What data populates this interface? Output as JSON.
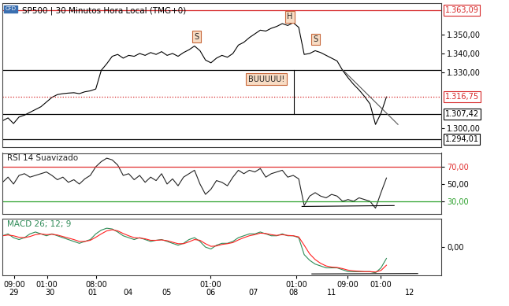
{
  "chart_data": [
    {
      "type": "line",
      "title": "SP500 | 30 Minutos Hora Local (TMG+0)",
      "badge": "CFD",
      "x": [
        0,
        1,
        2,
        3,
        4,
        5,
        6,
        7,
        8,
        9,
        10,
        11,
        12,
        13,
        14,
        15,
        16,
        17,
        18,
        19,
        20,
        21,
        22,
        23,
        24,
        25,
        26,
        27,
        28,
        29,
        30,
        31,
        32,
        33,
        34,
        35,
        36,
        37,
        38,
        39,
        40,
        41,
        42,
        43,
        44,
        45,
        46,
        47,
        48,
        49,
        50,
        51,
        52,
        53,
        54,
        55,
        56,
        57,
        58,
        59,
        60,
        61,
        62,
        63,
        64,
        65,
        66,
        67,
        68,
        69,
        70
      ],
      "series": [
        {
          "name": "SP500",
          "color": "#000000",
          "values": [
            1304.0,
            1305.5,
            1302.5,
            1306.0,
            1307.0,
            1308.5,
            1310.0,
            1311.5,
            1314.0,
            1316.5,
            1318.0,
            1318.5,
            1318.8,
            1319.0,
            1318.5,
            1319.5,
            1320.0,
            1321.0,
            1331.0,
            1334.5,
            1338.5,
            1339.5,
            1337.5,
            1339.0,
            1338.5,
            1340.0,
            1339.0,
            1340.5,
            1339.5,
            1341.0,
            1339.0,
            1340.0,
            1338.5,
            1340.5,
            1342.0,
            1344.0,
            1341.5,
            1336.5,
            1335.0,
            1337.5,
            1339.0,
            1338.0,
            1340.0,
            1344.5,
            1346.0,
            1348.5,
            1350.5,
            1352.5,
            1352.0,
            1353.5,
            1354.5,
            1356.0,
            1355.0,
            1356.5,
            1354.0,
            1339.5,
            1340.0,
            1341.5,
            1340.5,
            1339.0,
            1337.5,
            1336.0,
            1331.0,
            1327.0,
            1323.5,
            1320.5,
            1317.0,
            1313.0,
            1302.0,
            1308.0,
            1316.75
          ]
        }
      ],
      "xlim": [
        0,
        80
      ],
      "ylim": [
        1290,
        1367
      ],
      "yticks": [
        {
          "value": 1300,
          "label": "1.300,00"
        },
        {
          "value": 1330,
          "label": "1.330,00"
        },
        {
          "value": 1340,
          "label": "1.340,00"
        },
        {
          "value": 1350,
          "label": "1.350,00"
        }
      ],
      "levels": [
        {
          "value": 1363.09,
          "label": "1.363,09",
          "color": "#d62728",
          "line_style": "solid"
        },
        {
          "value": 1331.3,
          "color": "#000000",
          "line_style": "solid"
        },
        {
          "value": 1316.75,
          "label": "1.316,75",
          "color": "#d62728",
          "line_style": "dotted"
        },
        {
          "value": 1307.42,
          "label": "1.307,42",
          "color": "#000000",
          "line_style": "solid"
        },
        {
          "value": 1294.01,
          "label": "1.294,01",
          "color": "#000000",
          "line_style": "solid"
        }
      ],
      "lines": [
        {
          "x": [
            53.1,
            53.1
          ],
          "y": [
            1331.3,
            1307.42
          ],
          "color": "#000000"
        },
        {
          "x": [
            62.1,
            72.1
          ],
          "y": [
            1331.0,
            1302.0
          ],
          "color": "#555555"
        }
      ],
      "annotations": [
        {
          "text": "S",
          "x": 35.4,
          "y": 1349.0
        },
        {
          "text": "H",
          "x": 52.4,
          "y": 1359.7
        },
        {
          "text": "S",
          "x": 57.1,
          "y": 1347.6
        },
        {
          "text": "BUUUUU!",
          "x": 48.1,
          "y": 1326.3
        }
      ],
      "grid": false,
      "tick_labels": "y"
    },
    {
      "type": "line",
      "title": "RSI 14 Suavizado",
      "x": [
        0,
        1,
        2,
        3,
        4,
        5,
        6,
        7,
        8,
        9,
        10,
        11,
        12,
        13,
        14,
        15,
        16,
        17,
        18,
        19,
        20,
        21,
        22,
        23,
        24,
        25,
        26,
        27,
        28,
        29,
        30,
        31,
        32,
        33,
        34,
        35,
        36,
        37,
        38,
        39,
        40,
        41,
        42,
        43,
        44,
        45,
        46,
        47,
        48,
        49,
        50,
        51,
        52,
        53,
        54,
        55,
        56,
        57,
        58,
        59,
        60,
        61,
        62,
        63,
        64,
        65,
        66,
        67,
        68,
        69,
        70
      ],
      "series": [
        {
          "name": "RSI 14 Suavizado",
          "color": "#222222",
          "values": [
            52,
            58,
            50,
            60,
            62,
            58,
            60,
            62,
            64,
            60,
            55,
            58,
            52,
            55,
            50,
            56,
            60,
            70,
            76,
            80,
            78,
            72,
            60,
            62,
            55,
            60,
            52,
            58,
            54,
            62,
            50,
            56,
            48,
            58,
            62,
            66,
            50,
            38,
            44,
            54,
            52,
            48,
            58,
            66,
            62,
            66,
            64,
            68,
            58,
            62,
            64,
            66,
            58,
            60,
            56,
            25,
            36,
            40,
            36,
            34,
            38,
            36,
            30,
            32,
            30,
            34,
            32,
            30,
            22,
            40,
            57
          ]
        }
      ],
      "xlim": [
        0,
        80
      ],
      "ylim": [
        15,
        86
      ],
      "yticks": [
        {
          "value": 30,
          "label": "30,00"
        },
        {
          "value": 50,
          "label": "50,00"
        },
        {
          "value": 70,
          "label": "70,00"
        }
      ],
      "levels": [
        {
          "value": 70,
          "color": "#e03030",
          "line_style": "solid"
        },
        {
          "value": 30,
          "color": "#2ca02c",
          "line_style": "solid"
        }
      ],
      "lines": [
        {
          "x": [
            54.6,
            71.4
          ],
          "y": [
            24,
            25
          ],
          "color": "#000000"
        }
      ],
      "grid": false,
      "tick_labels": "y"
    },
    {
      "type": "line",
      "title": "MACD 26; 12; 9",
      "x": [
        0,
        1,
        2,
        3,
        4,
        5,
        6,
        7,
        8,
        9,
        10,
        11,
        12,
        13,
        14,
        15,
        16,
        17,
        18,
        19,
        20,
        21,
        22,
        23,
        24,
        25,
        26,
        27,
        28,
        29,
        30,
        31,
        32,
        33,
        34,
        35,
        36,
        37,
        38,
        39,
        40,
        41,
        42,
        43,
        44,
        45,
        46,
        47,
        48,
        49,
        50,
        51,
        52,
        53,
        54,
        55,
        56,
        57,
        58,
        59,
        60,
        61,
        62,
        63,
        64,
        65,
        66,
        67,
        68,
        69,
        70
      ],
      "series": [
        {
          "name": "MACD 26; 12; 9",
          "color": "#2e8b57",
          "values": [
            3.0,
            3.5,
            2.5,
            2.0,
            2.5,
            3.5,
            4.0,
            3.5,
            3.0,
            3.5,
            3.0,
            2.5,
            2.0,
            1.5,
            1.0,
            1.5,
            2.0,
            3.5,
            4.5,
            5.0,
            4.8,
            4.0,
            3.0,
            2.5,
            2.0,
            2.5,
            2.0,
            1.5,
            1.8,
            2.0,
            1.5,
            1.0,
            0.5,
            1.0,
            2.0,
            2.5,
            1.5,
            0.0,
            -0.5,
            0.5,
            1.0,
            1.0,
            1.5,
            2.5,
            3.0,
            3.5,
            3.5,
            4.0,
            3.5,
            3.0,
            3.0,
            3.5,
            3.0,
            3.0,
            2.5,
            -2.0,
            -3.5,
            -4.5,
            -5.0,
            -5.5,
            -5.5,
            -5.5,
            -6.0,
            -6.5,
            -6.5,
            -6.5,
            -6.5,
            -6.5,
            -6.8,
            -5.5,
            -3.0
          ]
        },
        {
          "color": "#ff2020",
          "values": [
            3.0,
            3.2,
            3.0,
            2.6,
            2.5,
            2.8,
            3.3,
            3.5,
            3.3,
            3.4,
            3.2,
            2.8,
            2.4,
            2.0,
            1.5,
            1.5,
            1.8,
            2.6,
            3.5,
            4.3,
            4.6,
            4.3,
            3.6,
            3.0,
            2.5,
            2.4,
            2.2,
            1.8,
            1.8,
            1.9,
            1.7,
            1.3,
            0.9,
            0.9,
            1.4,
            2.0,
            1.8,
            0.9,
            0.2,
            0.3,
            0.7,
            0.9,
            1.2,
            1.9,
            2.5,
            3.0,
            3.3,
            3.7,
            3.6,
            3.3,
            3.1,
            3.3,
            3.1,
            3.0,
            2.7,
            0.5,
            -1.8,
            -3.3,
            -4.3,
            -5.0,
            -5.3,
            -5.4,
            -5.7,
            -6.1,
            -6.3,
            -6.4,
            -6.5,
            -6.5,
            -6.6,
            -6.2,
            -4.8
          ]
        }
      ],
      "xlim": [
        0,
        80
      ],
      "ylim": [
        -7.5,
        7.5
      ],
      "yticks": [
        {
          "value": 0,
          "label": "0,00"
        }
      ],
      "xticks": [
        {
          "value": 2.1,
          "label": "09:00"
        },
        {
          "value": 8.1,
          "label": "01:00"
        },
        {
          "value": 17.1,
          "label": "08:00"
        },
        {
          "value": 37.9,
          "label": "01:00"
        },
        {
          "value": 53.6,
          "label": "01:00"
        },
        {
          "value": 62.9,
          "label": "09:00"
        },
        {
          "value": 68.9,
          "label": "01:00"
        }
      ],
      "days": [
        {
          "value": 2.1,
          "label": "29"
        },
        {
          "value": 8.6,
          "label": "30"
        },
        {
          "value": 16.4,
          "label": "01"
        },
        {
          "value": 22.9,
          "label": "04"
        },
        {
          "value": 30.0,
          "label": "05"
        },
        {
          "value": 37.9,
          "label": "06"
        },
        {
          "value": 45.7,
          "label": "07"
        },
        {
          "value": 53.1,
          "label": "08"
        },
        {
          "value": 60.0,
          "label": "11"
        },
        {
          "value": 74.3,
          "label": "12"
        }
      ],
      "lines": [
        {
          "x": [
            56.4,
            75.7
          ],
          "y": [
            -7.1,
            -7.0
          ],
          "color": "#000000"
        }
      ],
      "grid": false
    }
  ]
}
